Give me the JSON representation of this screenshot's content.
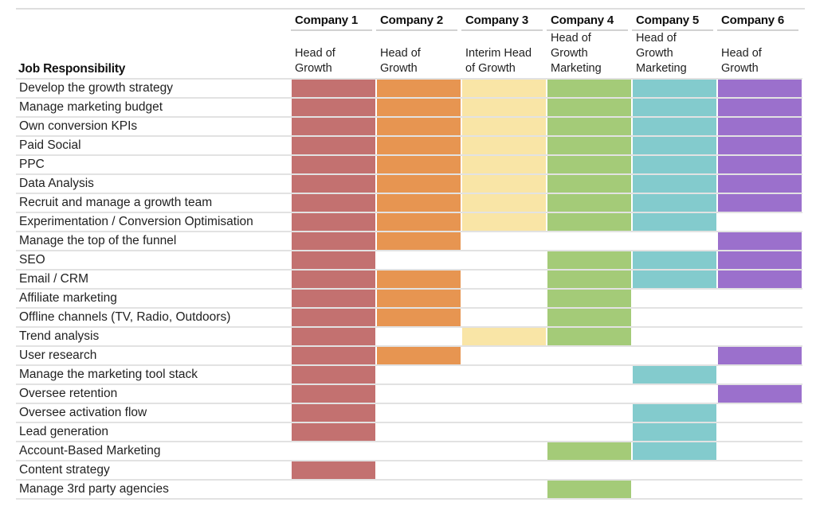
{
  "page": {
    "background": "#FFFFFF"
  },
  "table": {
    "left_header": "Job Responsibility",
    "companies": [
      {
        "name": "Company 1",
        "role": "Head of Growth",
        "color": "#C37170"
      },
      {
        "name": "Company 2",
        "role": "Head of Growth",
        "color": "#E79551"
      },
      {
        "name": "Company 3",
        "role": "Interim Head of Growth",
        "color": "#F9E5A6"
      },
      {
        "name": "Company 4",
        "role": "Head of Growth Marketing",
        "color": "#A4CB78"
      },
      {
        "name": "Company 5",
        "role": "Head of Growth Marketing",
        "color": "#83CBCD"
      },
      {
        "name": "Company 6",
        "role": "Head of Growth",
        "color": "#9B70CC"
      }
    ]
  },
  "chart_data": {
    "type": "heatmap",
    "title": "",
    "xlabel": "",
    "ylabel": "Job Responsibility",
    "legend": "none",
    "grid": "horizontal light-gray rules between rows",
    "cell_encoding": "1 = responsibility is part of that company's role (cell filled with company color), 0 = not part of role (cell white)",
    "x_labels": [
      "Company 1",
      "Company 2",
      "Company 3",
      "Company 4",
      "Company 5",
      "Company 6"
    ],
    "x_sub_labels": [
      "Head of Growth",
      "Head of Growth",
      "Interim Head of Growth",
      "Head of Growth Marketing",
      "Head of Growth Marketing",
      "Head of Growth"
    ],
    "categories": [
      "Develop the growth strategy",
      "Manage marketing budget",
      "Own conversion KPIs",
      "Paid Social",
      "PPC",
      "Data Analysis",
      "Recruit and manage a growth team",
      "Experimentation / Conversion Optimisation",
      "Manage the top of the funnel",
      "SEO",
      "Email / CRM",
      "Affiliate marketing",
      "Offline channels (TV, Radio, Outdoors)",
      "Trend analysis",
      "User research",
      "Manage the marketing tool stack",
      "Oversee retention",
      "Oversee activation flow",
      "Lead generation",
      "Account-Based Marketing",
      "Content strategy",
      "Manage 3rd party agencies"
    ],
    "matrix": [
      [
        1,
        1,
        1,
        1,
        1,
        1
      ],
      [
        1,
        1,
        1,
        1,
        1,
        1
      ],
      [
        1,
        1,
        1,
        1,
        1,
        1
      ],
      [
        1,
        1,
        1,
        1,
        1,
        1
      ],
      [
        1,
        1,
        1,
        1,
        1,
        1
      ],
      [
        1,
        1,
        1,
        1,
        1,
        1
      ],
      [
        1,
        1,
        1,
        1,
        1,
        1
      ],
      [
        1,
        1,
        1,
        1,
        1,
        0
      ],
      [
        1,
        1,
        0,
        0,
        0,
        1
      ],
      [
        1,
        0,
        0,
        1,
        1,
        1
      ],
      [
        1,
        1,
        0,
        1,
        1,
        1
      ],
      [
        1,
        1,
        0,
        1,
        0,
        0
      ],
      [
        1,
        1,
        0,
        1,
        0,
        0
      ],
      [
        1,
        0,
        1,
        1,
        0,
        0
      ],
      [
        1,
        1,
        0,
        0,
        0,
        1
      ],
      [
        1,
        0,
        0,
        0,
        1,
        0
      ],
      [
        1,
        0,
        0,
        0,
        0,
        1
      ],
      [
        1,
        0,
        0,
        0,
        1,
        0
      ],
      [
        1,
        0,
        0,
        0,
        1,
        0
      ],
      [
        0,
        0,
        0,
        1,
        1,
        0
      ],
      [
        1,
        0,
        0,
        0,
        0,
        0
      ],
      [
        0,
        0,
        0,
        1,
        0,
        0
      ]
    ],
    "palette": {
      "company_1": "#C37170",
      "company_2": "#E79551",
      "company_3": "#F9E5A6",
      "company_4": "#A4CB78",
      "company_5": "#83CBCD",
      "company_6": "#9B70CC",
      "gridline": "#E2E2E2",
      "text": "#1F1F1F"
    }
  }
}
